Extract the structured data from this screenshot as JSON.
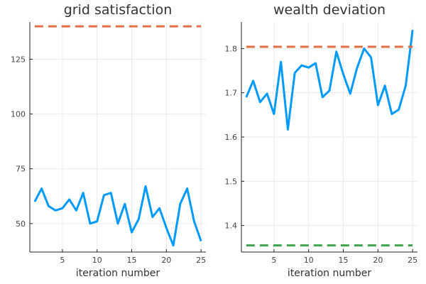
{
  "chart_data": [
    {
      "type": "line",
      "title": "grid satisfaction",
      "xlabel": "iteration number",
      "ylabel": "",
      "x": [
        1,
        2,
        3,
        4,
        5,
        6,
        7,
        8,
        9,
        10,
        11,
        12,
        13,
        14,
        15,
        16,
        17,
        18,
        19,
        20,
        21,
        22,
        23,
        24,
        25
      ],
      "xlim": [
        0.3,
        25.7
      ],
      "ylim": [
        37,
        142
      ],
      "xticks": [
        5,
        10,
        15,
        20,
        25
      ],
      "yticks": [
        50,
        75,
        100,
        125
      ],
      "grid": true,
      "legend": "none",
      "series": [
        {
          "color": "#009AFA",
          "style": "solid",
          "values": [
            60,
            66,
            58,
            56,
            57,
            61,
            56,
            64,
            50,
            51,
            63,
            64,
            50,
            59,
            46,
            52,
            67,
            53,
            57,
            48,
            40,
            59,
            66,
            51,
            42
          ]
        },
        {
          "color": "#E26F46",
          "style": "dashed",
          "values": [
            140,
            140,
            140,
            140,
            140,
            140,
            140,
            140,
            140,
            140,
            140,
            140,
            140,
            140,
            140,
            140,
            140,
            140,
            140,
            140,
            140,
            140,
            140,
            140,
            140
          ]
        }
      ]
    },
    {
      "type": "line",
      "title": "wealth deviation",
      "xlabel": "iteration number",
      "ylabel": "",
      "x": [
        1,
        2,
        3,
        4,
        5,
        6,
        7,
        8,
        9,
        10,
        11,
        12,
        13,
        14,
        15,
        16,
        17,
        18,
        19,
        20,
        21,
        22,
        23,
        24,
        25
      ],
      "xlim": [
        0.3,
        25.7
      ],
      "ylim": [
        1.34,
        1.86
      ],
      "xticks": [
        5,
        10,
        15,
        20,
        25
      ],
      "yticks": [
        1.4,
        1.5,
        1.6,
        1.7,
        1.8
      ],
      "grid": true,
      "legend": "none",
      "series": [
        {
          "color": "#009AFA",
          "style": "solid",
          "values": [
            1.69,
            1.727,
            1.679,
            1.698,
            1.652,
            1.77,
            1.617,
            1.745,
            1.762,
            1.757,
            1.767,
            1.69,
            1.705,
            1.793,
            1.742,
            1.698,
            1.757,
            1.8,
            1.78,
            1.672,
            1.716,
            1.652,
            1.662,
            1.716,
            1.842
          ]
        },
        {
          "color": "#E26F46",
          "style": "dashed",
          "values": [
            1.804,
            1.804,
            1.804,
            1.804,
            1.804,
            1.804,
            1.804,
            1.804,
            1.804,
            1.804,
            1.804,
            1.804,
            1.804,
            1.804,
            1.804,
            1.804,
            1.804,
            1.804,
            1.804,
            1.804,
            1.804,
            1.804,
            1.804,
            1.804,
            1.804
          ]
        },
        {
          "color": "#3EA44E",
          "style": "dashed",
          "values": [
            1.355,
            1.355,
            1.355,
            1.355,
            1.355,
            1.355,
            1.355,
            1.355,
            1.355,
            1.355,
            1.355,
            1.355,
            1.355,
            1.355,
            1.355,
            1.355,
            1.355,
            1.355,
            1.355,
            1.355,
            1.355,
            1.355,
            1.355,
            1.355,
            1.355
          ]
        }
      ]
    }
  ]
}
